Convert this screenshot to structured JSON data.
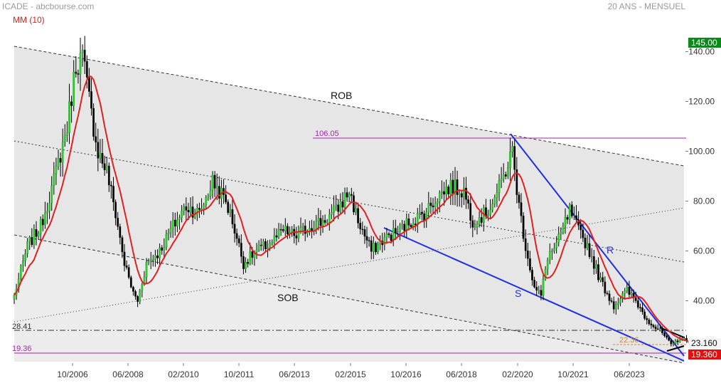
{
  "header": {
    "ticker_source": "ICADE - abcbourse.com",
    "period": "20 ANS - MENSUEL",
    "indicator": "MM (10)"
  },
  "colors": {
    "up": "#2ecc2e",
    "down": "#000000",
    "ma": "#e02020",
    "blue_lines": "#1f2fe0",
    "level": "#aa22aa",
    "price_badge_green": "#0a8a1a",
    "price_badge_red": "#e01010"
  },
  "chart_data": {
    "type": "candlestick",
    "title": "ICADE",
    "ylim": [
      15,
      148
    ],
    "y_ticks": [
      40,
      60,
      80,
      100,
      120,
      140
    ],
    "y_tick_labels": [
      "40.00",
      "60.00",
      "80.00",
      "100.00",
      "120.00",
      "140.00"
    ],
    "x_ticks": [
      "10/2006",
      "06/2008",
      "02/2010",
      "10/2011",
      "06/2013",
      "02/2015",
      "10/2016",
      "06/2018",
      "02/2020",
      "10/2021",
      "06/2023"
    ],
    "grid": false,
    "anchors": [
      [
        0,
        42
      ],
      [
        6,
        62
      ],
      [
        12,
        70
      ],
      [
        18,
        88
      ],
      [
        24,
        110
      ],
      [
        28,
        135
      ],
      [
        31,
        138
      ],
      [
        35,
        115
      ],
      [
        38,
        100
      ],
      [
        42,
        92
      ],
      [
        46,
        75
      ],
      [
        50,
        55
      ],
      [
        54,
        43
      ],
      [
        56,
        40
      ],
      [
        60,
        55
      ],
      [
        66,
        60
      ],
      [
        72,
        70
      ],
      [
        78,
        78
      ],
      [
        84,
        75
      ],
      [
        90,
        88
      ],
      [
        96,
        80
      ],
      [
        99,
        72
      ],
      [
        104,
        55
      ],
      [
        110,
        60
      ],
      [
        116,
        63
      ],
      [
        122,
        68
      ],
      [
        128,
        66
      ],
      [
        134,
        70
      ],
      [
        140,
        72
      ],
      [
        146,
        76
      ],
      [
        152,
        84
      ],
      [
        156,
        72
      ],
      [
        162,
        60
      ],
      [
        168,
        65
      ],
      [
        174,
        68
      ],
      [
        180,
        72
      ],
      [
        186,
        75
      ],
      [
        192,
        82
      ],
      [
        198,
        86
      ],
      [
        204,
        84
      ],
      [
        208,
        72
      ],
      [
        214,
        75
      ],
      [
        220,
        85
      ],
      [
        226,
        100
      ],
      [
        229,
        78
      ],
      [
        232,
        62
      ],
      [
        236,
        45
      ],
      [
        239,
        42
      ],
      [
        242,
        58
      ],
      [
        246,
        62
      ],
      [
        252,
        76
      ],
      [
        256,
        68
      ],
      [
        260,
        62
      ],
      [
        266,
        48
      ],
      [
        272,
        38
      ],
      [
        278,
        44
      ],
      [
        282,
        40
      ],
      [
        286,
        34
      ],
      [
        290,
        30
      ],
      [
        294,
        27
      ],
      [
        298,
        22
      ],
      [
        302,
        25
      ],
      [
        306,
        23.16
      ]
    ],
    "last_close": 23.16,
    "annotations": {
      "rob": "ROB",
      "sob": "SOB",
      "r_label": "R",
      "s_label": "S",
      "lvl_106": "106.05",
      "lvl_28": "28.41",
      "lvl_22": "22.36",
      "lvl_19": "19.36"
    },
    "price_badges": {
      "resistance": "145.00",
      "last": "23.160",
      "support": "19.360"
    }
  }
}
